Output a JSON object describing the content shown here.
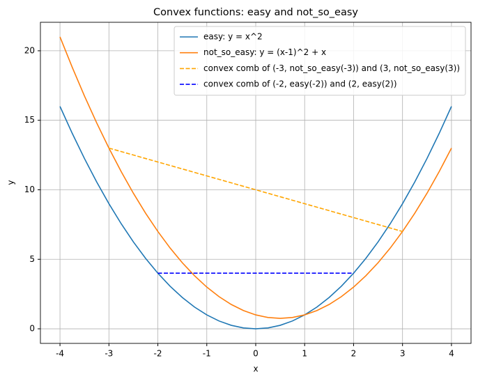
{
  "chart_data": {
    "type": "line",
    "title": "Convex functions: easy and not_so_easy",
    "xlabel": "x",
    "ylabel": "y",
    "xlim": [
      -4.4,
      4.4
    ],
    "ylim": [
      -1.05,
      22.05
    ],
    "xticks": [
      -4,
      -3,
      -2,
      -1,
      0,
      1,
      2,
      3,
      4
    ],
    "yticks": [
      0,
      5,
      10,
      15,
      20
    ],
    "grid": true,
    "legend": "upper right",
    "series": [
      {
        "name": "easy: y = x^2",
        "color": "#1f77b4",
        "linestyle": "solid",
        "x": [
          -4,
          -3.75,
          -3.5,
          -3.25,
          -3,
          -2.75,
          -2.5,
          -2.25,
          -2,
          -1.75,
          -1.5,
          -1.25,
          -1,
          -0.75,
          -0.5,
          -0.25,
          0,
          0.25,
          0.5,
          0.75,
          1,
          1.25,
          1.5,
          1.75,
          2,
          2.25,
          2.5,
          2.75,
          3,
          3.25,
          3.5,
          3.75,
          4
        ],
        "values": [
          16,
          14.0625,
          12.25,
          10.5625,
          9,
          7.5625,
          6.25,
          5.0625,
          4,
          3.0625,
          2.25,
          1.5625,
          1,
          0.5625,
          0.25,
          0.0625,
          0,
          0.0625,
          0.25,
          0.5625,
          1,
          1.5625,
          2.25,
          3.0625,
          4,
          5.0625,
          6.25,
          7.5625,
          9,
          10.5625,
          12.25,
          14.0625,
          16
        ]
      },
      {
        "name": "not_so_easy: y = (x-1)^2 + x",
        "color": "#ff7f0e",
        "linestyle": "solid",
        "x": [
          -4,
          -3.75,
          -3.5,
          -3.25,
          -3,
          -2.75,
          -2.5,
          -2.25,
          -2,
          -1.75,
          -1.5,
          -1.25,
          -1,
          -0.75,
          -0.5,
          -0.25,
          0,
          0.25,
          0.5,
          0.75,
          1,
          1.25,
          1.5,
          1.75,
          2,
          2.25,
          2.5,
          2.75,
          3,
          3.25,
          3.5,
          3.75,
          4
        ],
        "values": [
          21,
          18.8125,
          16.75,
          14.8125,
          13,
          11.3125,
          9.75,
          8.3125,
          7,
          5.8125,
          4.75,
          3.8125,
          3,
          2.3125,
          1.75,
          1.3125,
          1,
          0.8125,
          0.75,
          0.8125,
          1,
          1.3125,
          1.75,
          2.3125,
          3,
          3.8125,
          4.75,
          5.8125,
          7,
          8.3125,
          9.75,
          11.3125,
          13
        ]
      },
      {
        "name": "convex comb of (-3, not_so_easy(-3)) and (3, not_so_easy(3))",
        "color": "#ffa500",
        "linestyle": "dashed",
        "x": [
          -3,
          3
        ],
        "values": [
          13,
          7
        ]
      },
      {
        "name": "convex comb of (-2, easy(-2)) and (2, easy(2))",
        "color": "#0000ff",
        "linestyle": "dashed",
        "x": [
          -2,
          2
        ],
        "values": [
          4,
          4
        ]
      }
    ]
  }
}
